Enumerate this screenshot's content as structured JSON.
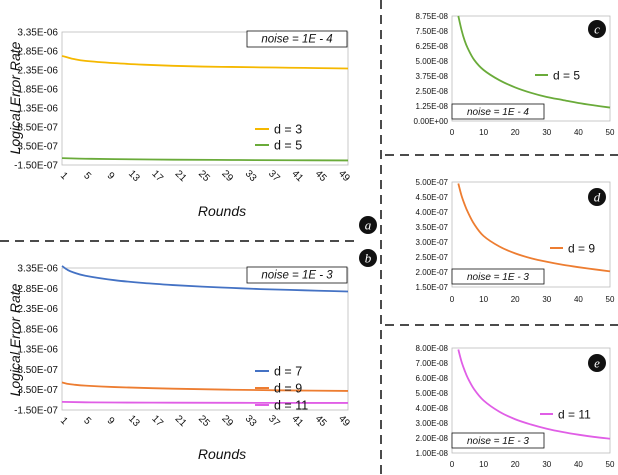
{
  "chart_data": [
    {
      "id": "a",
      "badge": "a",
      "type": "line",
      "ylabel": "Logical Error Rate",
      "xlabel": "Rounds",
      "annotation": "noise = 1E - 4",
      "x_ticks": [
        "1",
        "5",
        "9",
        "13",
        "17",
        "21",
        "25",
        "29",
        "33",
        "37",
        "41",
        "45",
        "49"
      ],
      "y_ticks": [
        "3.35E-06",
        "2.85E-06",
        "2.35E-06",
        "1.85E-06",
        "1.35E-06",
        "8.50E-07",
        "3.50E-07",
        "-1.50E-07"
      ],
      "y_tick_values": [
        3.35e-06,
        2.85e-06,
        2.35e-06,
        1.85e-06,
        1.35e-06,
        8.5e-07,
        3.5e-07,
        -1.5e-07
      ],
      "ylim": [
        -1.5e-07,
        3.35e-06
      ],
      "xlim": [
        1,
        50
      ],
      "series": [
        {
          "name": "d = 3",
          "color": "#f5b800",
          "x": [
            1,
            2,
            3,
            5,
            10,
            15,
            20,
            25,
            30,
            35,
            40,
            45,
            50
          ],
          "y": [
            2.72e-06,
            2.68e-06,
            2.64e-06,
            2.59e-06,
            2.53e-06,
            2.49e-06,
            2.46e-06,
            2.44e-06,
            2.43e-06,
            2.42e-06,
            2.41e-06,
            2.4e-06,
            2.39e-06
          ]
        },
        {
          "name": "d = 5",
          "color": "#6aab3a",
          "x": [
            1,
            5,
            10,
            20,
            30,
            40,
            50
          ],
          "y": [
            3e-08,
            1.5e-08,
            5e-09,
            -1e-08,
            -1.8e-08,
            -2.5e-08,
            -3e-08
          ]
        }
      ]
    },
    {
      "id": "b",
      "badge": "b",
      "type": "line",
      "ylabel": "Logical Error Rate",
      "xlabel": "Rounds",
      "annotation": "noise = 1E - 3",
      "x_ticks": [
        "1",
        "5",
        "9",
        "13",
        "17",
        "21",
        "25",
        "29",
        "33",
        "37",
        "41",
        "45",
        "49"
      ],
      "y_ticks": [
        "3.35E-06",
        "2.85E-06",
        "2.35E-06",
        "1.85E-06",
        "1.35E-06",
        "8.50E-07",
        "3.50E-07",
        "-1.50E-07"
      ],
      "y_tick_values": [
        3.35e-06,
        2.85e-06,
        2.35e-06,
        1.85e-06,
        1.35e-06,
        8.5e-07,
        3.5e-07,
        -1.5e-07
      ],
      "ylim": [
        -1.5e-07,
        3.35e-06
      ],
      "xlim": [
        1,
        50
      ],
      "series": [
        {
          "name": "d = 7",
          "color": "#4472c4",
          "x": [
            1,
            2,
            3,
            5,
            10,
            15,
            20,
            25,
            30,
            35,
            40,
            45,
            50
          ],
          "y": [
            3.4e-06,
            3.3e-06,
            3.24e-06,
            3.16e-06,
            3.05e-06,
            2.98e-06,
            2.93e-06,
            2.89e-06,
            2.86e-06,
            2.83e-06,
            2.81e-06,
            2.79e-06,
            2.77e-06
          ]
        },
        {
          "name": "d = 9",
          "color": "#ed7d31",
          "x": [
            1,
            2,
            3,
            5,
            10,
            20,
            30,
            40,
            50
          ],
          "y": [
            5.3e-07,
            4.95e-07,
            4.75e-07,
            4.5e-07,
            4.15e-07,
            3.75e-07,
            3.5e-07,
            3.32e-07,
            3.2e-07
          ]
        },
        {
          "name": "d = 11",
          "color": "#e05ee6",
          "x": [
            1,
            5,
            10,
            20,
            30,
            40,
            50
          ],
          "y": [
            5e-08,
            4e-08,
            3.5e-08,
            3e-08,
            2.7e-08,
            2.5e-08,
            2.4e-08
          ]
        }
      ]
    },
    {
      "id": "c",
      "badge": "c",
      "type": "line",
      "annotation": "noise = 1E - 4",
      "x_ticks": [
        "0",
        "10",
        "20",
        "30",
        "40",
        "50"
      ],
      "x_tick_values": [
        0,
        10,
        20,
        30,
        40,
        50
      ],
      "y_ticks": [
        "8.75E-08",
        "7.50E-08",
        "6.25E-08",
        "5.00E-08",
        "3.75E-08",
        "2.50E-08",
        "1.25E-08",
        "0.00E+00"
      ],
      "y_tick_values": [
        8.75e-08,
        7.5e-08,
        6.25e-08,
        5e-08,
        3.75e-08,
        2.5e-08,
        1.25e-08,
        0
      ],
      "ylim": [
        0,
        8.75e-08
      ],
      "xlim": [
        0,
        50
      ],
      "series": [
        {
          "name": "d = 5",
          "color": "#6aab3a",
          "x": [
            2,
            3,
            4,
            5,
            7,
            10,
            15,
            20,
            25,
            30,
            35,
            40,
            45,
            50
          ],
          "y": [
            8.75e-08,
            7.6e-08,
            6.7e-08,
            6.05e-08,
            5.1e-08,
            4.25e-08,
            3.4e-08,
            2.8e-08,
            2.35e-08,
            2e-08,
            1.75e-08,
            1.5e-08,
            1.3e-08,
            1.12e-08
          ]
        }
      ]
    },
    {
      "id": "d",
      "badge": "d",
      "type": "line",
      "annotation": "noise = 1E - 3",
      "x_ticks": [
        "0",
        "10",
        "20",
        "30",
        "40",
        "50"
      ],
      "x_tick_values": [
        0,
        10,
        20,
        30,
        40,
        50
      ],
      "y_ticks": [
        "5.00E-07",
        "4.50E-07",
        "4.00E-07",
        "3.50E-07",
        "3.00E-07",
        "2.50E-07",
        "2.00E-07",
        "1.50E-07"
      ],
      "y_tick_values": [
        5e-07,
        4.5e-07,
        4e-07,
        3.5e-07,
        3e-07,
        2.5e-07,
        2e-07,
        1.5e-07
      ],
      "ylim": [
        1.5e-07,
        5e-07
      ],
      "xlim": [
        0,
        50
      ],
      "series": [
        {
          "name": "d = 9",
          "color": "#ed7d31",
          "x": [
            2,
            3,
            4,
            5,
            7,
            10,
            15,
            20,
            25,
            30,
            35,
            40,
            45,
            50
          ],
          "y": [
            4.95e-07,
            4.55e-07,
            4.25e-07,
            4e-07,
            3.6e-07,
            3.2e-07,
            2.85e-07,
            2.62e-07,
            2.46e-07,
            2.34e-07,
            2.24e-07,
            2.16e-07,
            2.09e-07,
            2.02e-07
          ]
        }
      ]
    },
    {
      "id": "e",
      "badge": "e",
      "type": "line",
      "annotation": "noise = 1E - 3",
      "x_ticks": [
        "0",
        "10",
        "20",
        "30",
        "40",
        "50"
      ],
      "x_tick_values": [
        0,
        10,
        20,
        30,
        40,
        50
      ],
      "y_ticks": [
        "8.00E-08",
        "7.00E-08",
        "6.00E-08",
        "5.00E-08",
        "4.00E-08",
        "3.00E-08",
        "2.00E-08",
        "1.00E-08"
      ],
      "y_tick_values": [
        8e-08,
        7e-08,
        6e-08,
        5e-08,
        4e-08,
        3e-08,
        2e-08,
        1e-08
      ],
      "ylim": [
        1e-08,
        8e-08
      ],
      "xlim": [
        0,
        50
      ],
      "series": [
        {
          "name": "d = 11",
          "color": "#e05ee6",
          "x": [
            2,
            3,
            4,
            5,
            7,
            10,
            15,
            20,
            25,
            30,
            35,
            40,
            45,
            50
          ],
          "y": [
            7.9e-08,
            7.1e-08,
            6.5e-08,
            6e-08,
            5.25e-08,
            4.5e-08,
            3.75e-08,
            3.25e-08,
            2.9e-08,
            2.62e-08,
            2.4e-08,
            2.22e-08,
            2.07e-08,
            1.95e-08
          ]
        }
      ]
    }
  ]
}
